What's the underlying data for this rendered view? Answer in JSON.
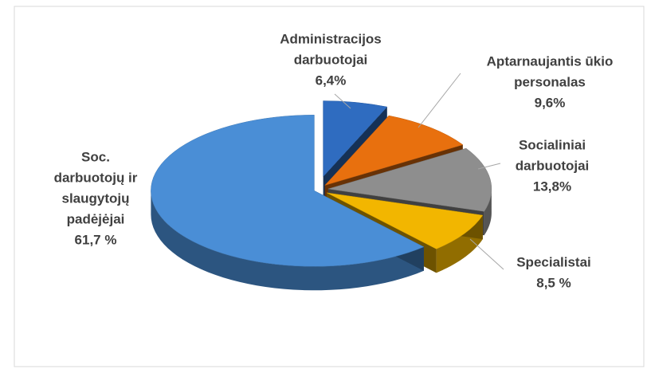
{
  "chart_data": {
    "type": "pie",
    "categories": [
      [
        "Administracijos",
        "darbuotojai"
      ],
      [
        "Aptarnaujantis ūkio",
        "personalas"
      ],
      [
        "Socialiniai",
        "darbuotojai"
      ],
      [
        "Specialistai"
      ],
      [
        "Soc.",
        "darbuotojų ir",
        "slaugytojų",
        "padėjėjai"
      ]
    ],
    "values": [
      6.4,
      9.6,
      13.8,
      8.5,
      61.7
    ],
    "value_labels": [
      "6,4%",
      "9,6%",
      "13,8%",
      "8,5 %",
      "61,7 %"
    ],
    "colors": [
      "#2f6cc0",
      "#e8700e",
      "#8e8e8e",
      "#f2b600",
      "#4a8ed6"
    ]
  }
}
